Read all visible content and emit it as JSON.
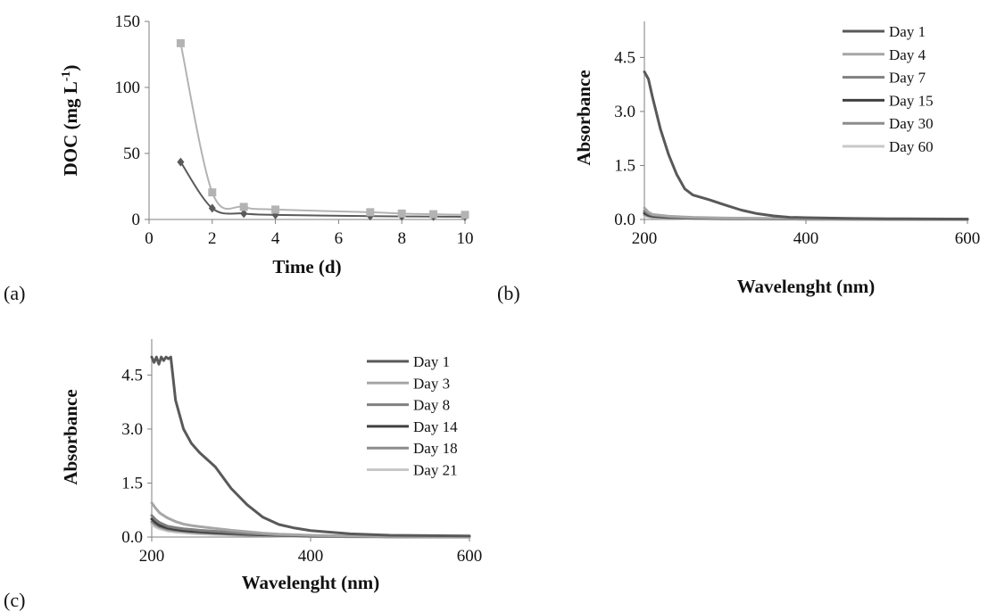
{
  "chart_data": [
    {
      "panel_label": "(a)",
      "type": "line",
      "xlabel": "Time (d)",
      "ylabel": "DOC (mg L",
      "ylabel_sup": "-1",
      "ylabel_end": ")",
      "xlim": [
        0,
        10
      ],
      "ylim": [
        0,
        150
      ],
      "xticks": [
        "0",
        "2",
        "4",
        "6",
        "8",
        "10"
      ],
      "yticks": [
        "0",
        "50",
        "100",
        "150"
      ],
      "grid": false,
      "legend": "none",
      "series": [
        {
          "color": "#b3b3b3",
          "marker": "square",
          "x": [
            1,
            2,
            3,
            4,
            7,
            8,
            9,
            10
          ],
          "y": [
            133.5,
            20.5,
            9.5,
            7.5,
            5.5,
            4.5,
            4.0,
            3.5
          ]
        },
        {
          "color": "#5a5a5a",
          "marker": "diamond",
          "x": [
            1,
            2,
            3,
            4,
            7,
            8,
            9,
            10
          ],
          "y": [
            43.5,
            8.5,
            4.5,
            3.5,
            2.5,
            2.3,
            2.2,
            2.0
          ]
        }
      ]
    },
    {
      "panel_label": "(b)",
      "type": "line",
      "xlabel": "Wavelenght (nm)",
      "ylabel": "Absorbance",
      "xlim": [
        200,
        600
      ],
      "ylim": [
        0,
        5.5
      ],
      "xticks": [
        "200",
        "400",
        "600"
      ],
      "yticks": [
        "0.0",
        "1.5",
        "3.0",
        "4.5"
      ],
      "grid": false,
      "legend": "top-right",
      "series": [
        {
          "name": "Day 1",
          "color": "#595959",
          "x": [
            200,
            205,
            210,
            220,
            230,
            240,
            250,
            260,
            280,
            300,
            320,
            340,
            360,
            380,
            400,
            450,
            500,
            600
          ],
          "y": [
            4.1,
            3.9,
            3.4,
            2.5,
            1.8,
            1.25,
            0.85,
            0.68,
            0.55,
            0.4,
            0.26,
            0.16,
            0.1,
            0.06,
            0.05,
            0.03,
            0.02,
            0.01
          ]
        },
        {
          "name": "Day 4",
          "color": "#a6a6a6",
          "x": [
            200,
            205,
            210,
            230,
            260,
            300,
            400,
            600
          ],
          "y": [
            0.32,
            0.2,
            0.14,
            0.09,
            0.06,
            0.04,
            0.02,
            0.01
          ]
        },
        {
          "name": "Day 7",
          "color": "#808080",
          "x": [
            200,
            205,
            210,
            230,
            260,
            300,
            400,
            600
          ],
          "y": [
            0.24,
            0.16,
            0.12,
            0.08,
            0.05,
            0.03,
            0.02,
            0.01
          ]
        },
        {
          "name": "Day 15",
          "color": "#404040",
          "x": [
            200,
            205,
            210,
            230,
            260,
            300,
            400,
            600
          ],
          "y": [
            0.18,
            0.12,
            0.09,
            0.06,
            0.04,
            0.03,
            0.01,
            0.01
          ]
        },
        {
          "name": "Day 30",
          "color": "#8c8c8c",
          "x": [
            200,
            205,
            210,
            230,
            260,
            300,
            400,
            600
          ],
          "y": [
            0.14,
            0.1,
            0.08,
            0.05,
            0.03,
            0.02,
            0.01,
            0.0
          ]
        },
        {
          "name": "Day 60",
          "color": "#c8c8c8",
          "x": [
            200,
            205,
            210,
            230,
            260,
            300,
            400,
            600
          ],
          "y": [
            0.1,
            0.07,
            0.05,
            0.04,
            0.02,
            0.01,
            0.01,
            0.0
          ]
        }
      ]
    },
    {
      "panel_label": "(c)",
      "type": "line",
      "xlabel": "Wavelenght (nm)",
      "ylabel": "Absorbance",
      "xlim": [
        200,
        600
      ],
      "ylim": [
        0,
        5.5
      ],
      "xticks": [
        "200",
        "400",
        "600"
      ],
      "yticks": [
        "0.0",
        "1.5",
        "3.0",
        "4.5"
      ],
      "grid": false,
      "legend": "top-right",
      "series": [
        {
          "name": "Day 1",
          "color": "#595959",
          "x": [
            200,
            203,
            206,
            209,
            212,
            215,
            218,
            221,
            224,
            226,
            230,
            240,
            250,
            260,
            280,
            300,
            320,
            340,
            360,
            380,
            400,
            450,
            500,
            600
          ],
          "y": [
            5.0,
            4.85,
            5.0,
            4.8,
            5.0,
            4.9,
            5.0,
            4.95,
            5.0,
            4.6,
            3.8,
            3.0,
            2.6,
            2.35,
            1.95,
            1.35,
            0.9,
            0.55,
            0.35,
            0.25,
            0.18,
            0.09,
            0.05,
            0.03
          ]
        },
        {
          "name": "Day 3",
          "color": "#a6a6a6",
          "x": [
            200,
            205,
            210,
            220,
            230,
            240,
            250,
            260,
            280,
            300,
            320,
            340,
            360,
            400,
            450,
            500,
            600
          ],
          "y": [
            0.95,
            0.8,
            0.67,
            0.53,
            0.43,
            0.36,
            0.32,
            0.29,
            0.24,
            0.19,
            0.15,
            0.11,
            0.08,
            0.05,
            0.03,
            0.02,
            0.01
          ]
        },
        {
          "name": "Day 8",
          "color": "#808080",
          "x": [
            200,
            205,
            210,
            220,
            230,
            240,
            250,
            260,
            280,
            300,
            320,
            340,
            360,
            400,
            450,
            500,
            600
          ],
          "y": [
            0.6,
            0.48,
            0.4,
            0.3,
            0.26,
            0.23,
            0.21,
            0.19,
            0.16,
            0.13,
            0.1,
            0.08,
            0.06,
            0.04,
            0.02,
            0.01,
            0.01
          ]
        },
        {
          "name": "Day 14",
          "color": "#404040",
          "x": [
            200,
            205,
            210,
            220,
            230,
            240,
            250,
            260,
            280,
            300,
            320,
            340,
            360,
            400,
            450,
            500,
            600
          ],
          "y": [
            0.5,
            0.4,
            0.32,
            0.25,
            0.21,
            0.18,
            0.16,
            0.15,
            0.12,
            0.1,
            0.08,
            0.06,
            0.05,
            0.03,
            0.02,
            0.01,
            0.01
          ]
        },
        {
          "name": "Day 18",
          "color": "#8c8c8c",
          "x": [
            200,
            205,
            210,
            220,
            230,
            240,
            250,
            260,
            280,
            300,
            320,
            340,
            360,
            400,
            450,
            500,
            600
          ],
          "y": [
            0.42,
            0.34,
            0.28,
            0.21,
            0.18,
            0.16,
            0.14,
            0.12,
            0.1,
            0.08,
            0.06,
            0.05,
            0.04,
            0.02,
            0.01,
            0.01,
            0.0
          ]
        },
        {
          "name": "Day 21",
          "color": "#c8c8c8",
          "x": [
            200,
            205,
            210,
            220,
            230,
            240,
            250,
            260,
            280,
            300,
            320,
            340,
            360,
            400,
            450,
            500,
            600
          ],
          "y": [
            0.35,
            0.28,
            0.23,
            0.17,
            0.14,
            0.12,
            0.1,
            0.09,
            0.07,
            0.06,
            0.05,
            0.04,
            0.03,
            0.02,
            0.01,
            0.0,
            0.0
          ]
        }
      ]
    }
  ]
}
